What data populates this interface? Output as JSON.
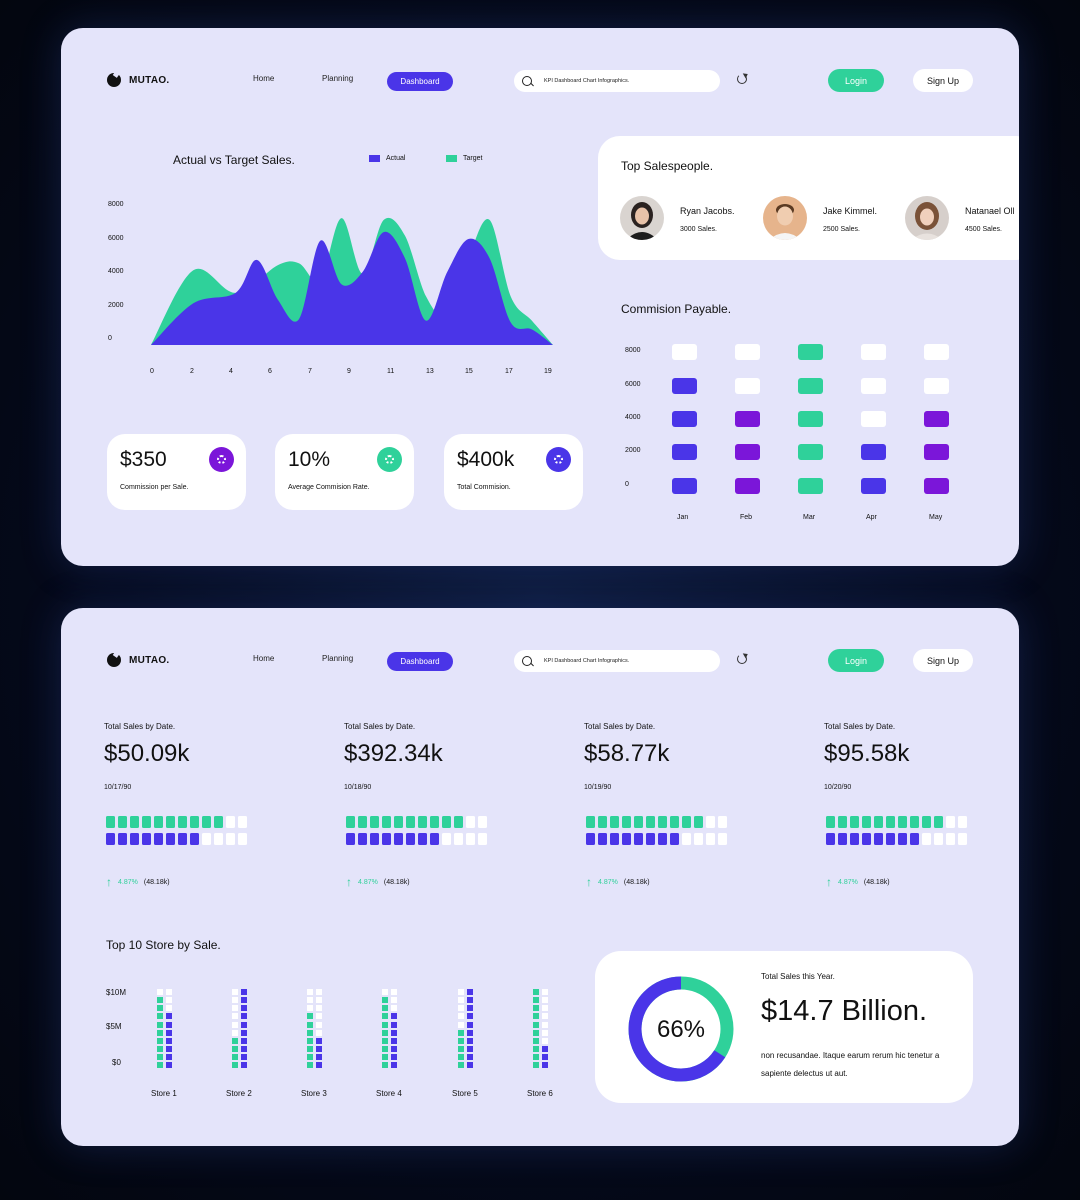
{
  "nav": {
    "logo": "MUTAO.",
    "links": [
      "Home",
      "Planning",
      "Dashboard"
    ],
    "search_value": "KPI Dashboard Chart Infographics.",
    "login_label": "Login",
    "signup_label": "Sign Up"
  },
  "panel1": {
    "sales_chart": {
      "title": "Actual vs Target Sales.",
      "legend": [
        {
          "name": "Actual",
          "color": "#4a35e8"
        },
        {
          "name": "Target",
          "color": "#2fd19a"
        }
      ],
      "y_ticks": [
        "8000",
        "6000",
        "4000",
        "2000",
        "0"
      ],
      "x_ticks": [
        "0",
        "2",
        "4",
        "6",
        "7",
        "9",
        "11",
        "13",
        "15",
        "17",
        "19"
      ]
    },
    "kpis": [
      {
        "value": "$350",
        "label": "Commission per Sale.",
        "icon": "gear-icon",
        "color": "#7b16d9"
      },
      {
        "value": "10%",
        "label": "Average Commision Rate.",
        "icon": "gear-icon",
        "color": "#2fd19a"
      },
      {
        "value": "$400k",
        "label": "Total Commision.",
        "icon": "gear-icon",
        "color": "#4a35e8"
      }
    ],
    "salespeople": {
      "title": "Top Salespeople.",
      "people": [
        {
          "name": "Ryan Jacobs.",
          "sales": "3000 Sales."
        },
        {
          "name": "Jake Kimmel.",
          "sales": "2500 Sales."
        },
        {
          "name": "Natanael Oll",
          "sales": "4500 Sales."
        }
      ]
    },
    "commission": {
      "title": "Commision Payable.",
      "y_ticks": [
        "8000",
        "6000",
        "4000",
        "2000",
        "0"
      ],
      "months": [
        "Jan",
        "Feb",
        "Mar",
        "Apr",
        "May"
      ]
    }
  },
  "panel2": {
    "stats": [
      {
        "label": "Total Sales by Date.",
        "value": "$50.09k",
        "date": "10/17/90",
        "change": "4.87%",
        "total": "(48.18k)",
        "green": 10,
        "purple": 8
      },
      {
        "label": "Total Sales by Date.",
        "value": "$392.34k",
        "date": "10/18/90",
        "change": "4.87%",
        "total": "(48.18k)",
        "green": 10,
        "purple": 8
      },
      {
        "label": "Total Sales by Date.",
        "value": "$58.77k",
        "date": "10/19/90",
        "change": "4.87%",
        "total": "(48.18k)",
        "green": 10,
        "purple": 8
      },
      {
        "label": "Total Sales by Date.",
        "value": "$95.58k",
        "date": "10/20/90",
        "change": "4.87%",
        "total": "(48.18k)",
        "green": 10,
        "purple": 8
      }
    ],
    "stores": {
      "title": "Top 10 Store by Sale.",
      "y_ticks": [
        "$10M",
        "$5M",
        "$0"
      ],
      "names": [
        "Store 1",
        "Store 2",
        "Store 3",
        "Store 4",
        "Store 5",
        "Store 6"
      ]
    },
    "year": {
      "label": "Total Sales this Year.",
      "value": "$14.7 Billion.",
      "percent": "66%",
      "percent_value": 66,
      "description": "non recusandae. Itaque earum rerum hic tenetur a sapiente delectus ut aut."
    }
  },
  "chart_data": [
    {
      "type": "area",
      "title": "Actual vs Target Sales.",
      "series": [
        {
          "name": "Actual",
          "x": [
            0,
            2,
            4,
            5,
            6,
            7,
            8,
            9,
            10,
            11,
            12,
            13,
            14,
            15,
            16,
            17,
            18,
            19
          ],
          "values": [
            0,
            2400,
            3000,
            4900,
            2600,
            1500,
            6000,
            3500,
            4200,
            6500,
            5000,
            1400,
            4200,
            6100,
            5000,
            1300,
            900,
            0
          ]
        },
        {
          "name": "Target",
          "x": [
            0,
            2,
            4,
            6,
            7,
            8,
            9,
            10,
            11,
            12,
            13,
            14,
            15,
            16,
            17,
            18,
            19
          ],
          "values": [
            0,
            4300,
            3000,
            4600,
            4700,
            3700,
            7300,
            4100,
            7200,
            6300,
            2800,
            1700,
            5000,
            7200,
            2800,
            1400,
            0
          ]
        }
      ],
      "ylim": [
        0,
        8000
      ]
    },
    {
      "type": "table",
      "title": "Commision Payable.",
      "categories": [
        "Jan",
        "Feb",
        "Mar",
        "Apr",
        "May"
      ],
      "y_levels": [
        8000,
        6000,
        4000,
        2000,
        0
      ],
      "filled_levels": [
        4,
        3,
        5,
        2,
        3
      ],
      "colors": [
        "#4a35e8",
        "#7b16d9",
        "#2fd19a",
        "#4a35e8",
        "#7b16d9"
      ]
    },
    {
      "type": "bar",
      "title": "Top 10 Store by Sale.",
      "categories": [
        "Store 1",
        "Store 2",
        "Store 3",
        "Store 4",
        "Store 5",
        "Store 6"
      ],
      "series": [
        {
          "name": "Green",
          "values": [
            9,
            4,
            7,
            9,
            5,
            10
          ]
        },
        {
          "name": "Purple",
          "values": [
            7,
            10,
            4,
            7,
            10,
            3
          ]
        }
      ],
      "ylim": [
        0,
        10
      ],
      "y_ticks": [
        "$10M",
        "$5M",
        "$0"
      ]
    }
  ]
}
